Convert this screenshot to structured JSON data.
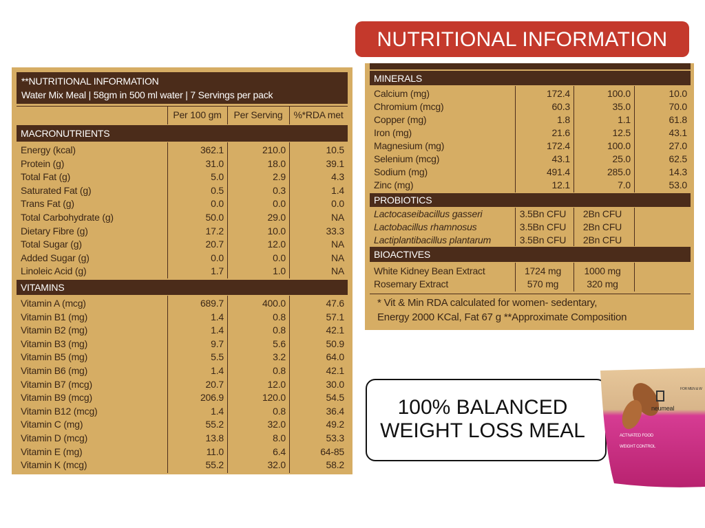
{
  "badge": "NUTRITIONAL INFORMATION",
  "left_table": {
    "title": "**NUTRITIONAL INFORMATION",
    "subtitle": "Water Mix Meal | 58gm in 500 ml water | 7 Servings per pack",
    "columns": [
      "Per 100 gm",
      "Per Serving",
      "%*RDA met"
    ],
    "sections": [
      {
        "name": "MACRONUTRIENTS",
        "rows": [
          [
            "Energy (kcal)",
            "362.1",
            "210.0",
            "10.5"
          ],
          [
            "Protein (g)",
            "31.0",
            "18.0",
            "39.1"
          ],
          [
            "Total Fat  (g)",
            "5.0",
            "2.9",
            "4.3"
          ],
          [
            "Saturated Fat (g)",
            "0.5",
            "0.3",
            "1.4"
          ],
          [
            "Trans Fat (g)",
            "0.0",
            "0.0",
            "0.0"
          ],
          [
            "Total Carbohydrate (g)",
            "50.0",
            "29.0",
            "NA"
          ],
          [
            "Dietary Fibre (g)",
            "17.2",
            "10.0",
            "33.3"
          ],
          [
            "Total Sugar (g)",
            "20.7",
            "12.0",
            "NA"
          ],
          [
            "Added Sugar (g)",
            "0.0",
            "0.0",
            "NA"
          ],
          [
            "Linoleic Acid  (g)",
            "1.7",
            "1.0",
            "NA"
          ]
        ]
      },
      {
        "name": "VITAMINS",
        "rows": [
          [
            "Vitamin A (mcg)",
            "689.7",
            "400.0",
            "47.6"
          ],
          [
            "Vitamin B1 (mg)",
            "1.4",
            "0.8",
            "57.1"
          ],
          [
            "Vitamin B2 (mg)",
            "1.4",
            "0.8",
            "42.1"
          ],
          [
            "Vitamin B3 (mg)",
            "9.7",
            "5.6",
            "50.9"
          ],
          [
            "Vitamin B5 (mg)",
            "5.5",
            "3.2",
            "64.0"
          ],
          [
            "Vitamin B6 (mg)",
            "1.4",
            "0.8",
            "42.1"
          ],
          [
            "Vitamin B7 (mcg)",
            "20.7",
            "12.0",
            "30.0"
          ],
          [
            "Vitamin B9 (mcg)",
            "206.9",
            "120.0",
            "54.5"
          ],
          [
            "Vitamin B12 (mcg)",
            "1.4",
            "0.8",
            "36.4"
          ],
          [
            "Vitamin C (mg)",
            "55.2",
            "32.0",
            "49.2"
          ],
          [
            "Vitamin D (mcg)",
            "13.8",
            "8.0",
            "53.3"
          ],
          [
            "Vitamin E (mg)",
            "11.0",
            "6.4",
            "64-85"
          ],
          [
            "Vitamin K (mcg)",
            "55.2",
            "32.0",
            "58.2"
          ]
        ]
      }
    ]
  },
  "right_table": {
    "sections": [
      {
        "name": "MINERALS",
        "rows": [
          [
            "Calcium (mg)",
            "172.4",
            "100.0",
            "10.0"
          ],
          [
            "Chromium (mcg)",
            "60.3",
            "35.0",
            "70.0"
          ],
          [
            "Copper (mg)",
            "1.8",
            "1.1",
            "61.8"
          ],
          [
            "Iron (mg)",
            "21.6",
            "12.5",
            "43.1"
          ],
          [
            "Magnesium (mg)",
            "172.4",
            "100.0",
            "27.0"
          ],
          [
            "Selenium (mcg)",
            "43.1",
            "25.0",
            "62.5"
          ],
          [
            "Sodium  (mg)",
            "491.4",
            "285.0",
            "14.3"
          ],
          [
            "Zinc (mg)",
            "12.1",
            "7.0",
            "53.0"
          ]
        ]
      },
      {
        "name": "PROBIOTICS",
        "rows": [
          [
            "Lactocaseibacillus gasseri",
            "3.5Bn CFU",
            "2Bn CFU"
          ],
          [
            "Lactobacillus rhamnosus",
            "3.5Bn CFU",
            "2Bn CFU"
          ],
          [
            "Lactiplantibacillus plantarum",
            "3.5Bn CFU",
            "2Bn CFU"
          ]
        ]
      },
      {
        "name": "BIOACTIVES",
        "rows": [
          [
            "White Kidney Bean Extract",
            "1724 mg",
            "1000 mg"
          ],
          [
            "Rosemary Extract",
            "570 mg",
            "320 mg"
          ]
        ]
      }
    ],
    "note": [
      "* Vit & Min RDA calculated for women- sedentary,",
      "Energy 2000 KCal, Fat 67 g **Approximate Composition"
    ]
  },
  "callout": {
    "lines": [
      "100% BALANCED",
      "WEIGHT LOSS MEAL"
    ]
  },
  "product": {
    "brand": "neumeal",
    "lines": [
      "ACTIVATED FOOD",
      "WEIGHT CONTROL"
    ],
    "tag": "FOR MEN & W"
  }
}
